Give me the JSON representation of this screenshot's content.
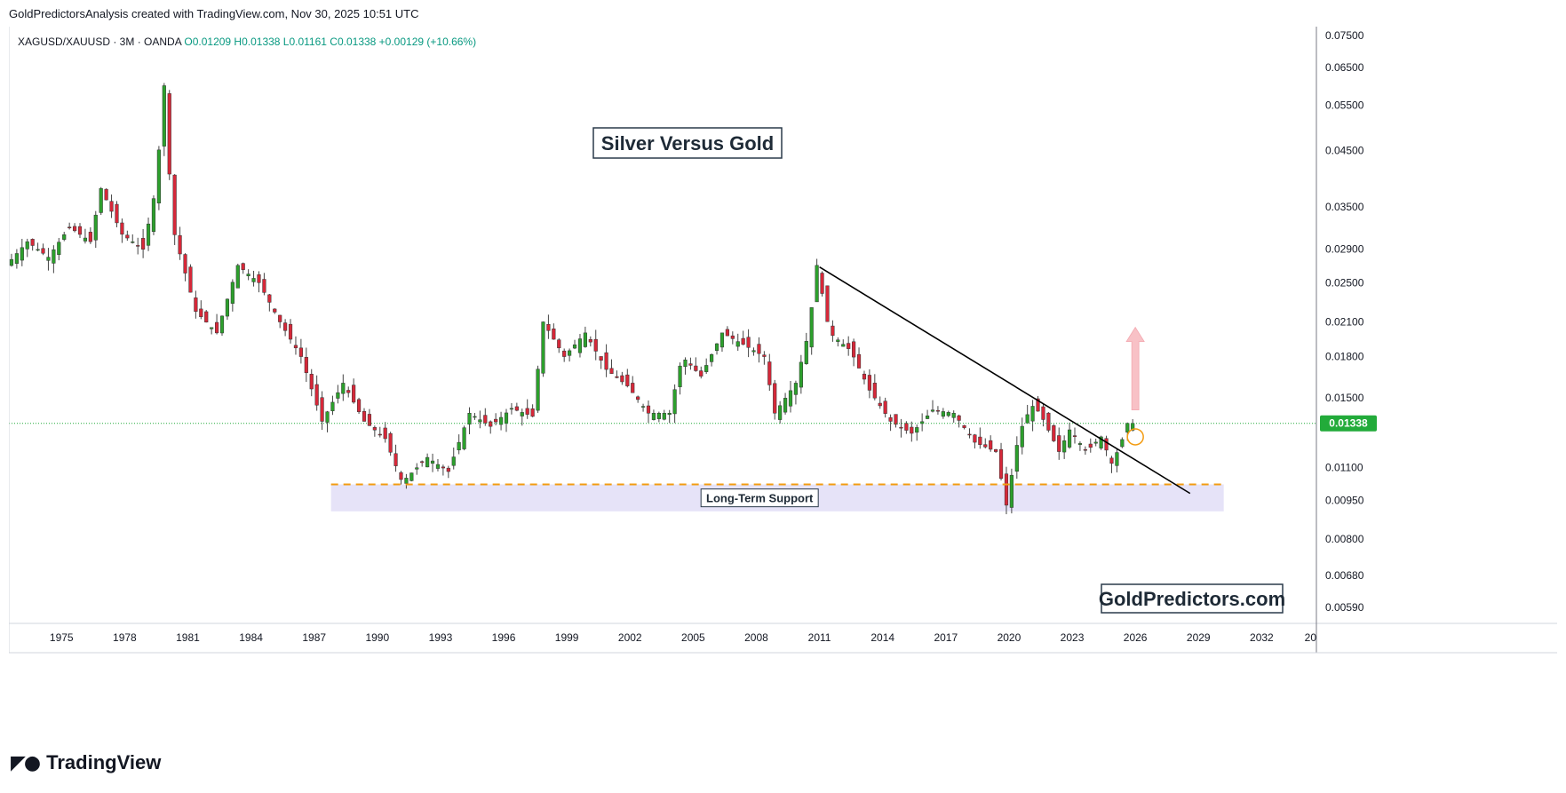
{
  "attribution": "GoldPredictorsAnalysis created with TradingView.com, Nov 30, 2025 10:51 UTC",
  "legend": {
    "symbol": "XAGUSD/XAUUSD · 3M · OANDA",
    "ohlc": "O0.01209 H0.01338 L0.01161 C0.01338 +0.00129 (+10.66%)"
  },
  "colors": {
    "up": "#2ca02c",
    "down": "#d62839",
    "trendline": "#000000",
    "support_line": "#f39c12",
    "support_zone": "#e6e3f8",
    "price_tag": "#22ab3a",
    "arrow": "#f7b7bd",
    "grid_axis": "#d1d4dc"
  },
  "chart_data": {
    "type": "candlestick",
    "title": "Silver Versus Gold",
    "scale": "log",
    "ylim": [
      0.0055,
      0.078
    ],
    "xlim": [
      1972.5,
      2034.6
    ],
    "y_ticks": [
      "0.07500",
      "0.06500",
      "0.05500",
      "0.04500",
      "0.03500",
      "0.02900",
      "0.02500",
      "0.02100",
      "0.01800",
      "0.01500",
      "0.01100",
      "0.00950",
      "0.00800",
      "0.00680",
      "0.00590"
    ],
    "x_ticks": [
      "1975",
      "1978",
      "1981",
      "1984",
      "1987",
      "1990",
      "1993",
      "1996",
      "1999",
      "2002",
      "2005",
      "2008",
      "2011",
      "2014",
      "2017",
      "2020",
      "2023",
      "2026",
      "2029",
      "2032",
      "20"
    ],
    "last_price": "0.01338",
    "anchors": [
      [
        1972.5,
        0.027
      ],
      [
        1973.5,
        0.03
      ],
      [
        1974.5,
        0.028
      ],
      [
        1975.5,
        0.032
      ],
      [
        1976.5,
        0.03
      ],
      [
        1977.0,
        0.038
      ],
      [
        1978.0,
        0.031
      ],
      [
        1979.0,
        0.029
      ],
      [
        1979.6,
        0.038
      ],
      [
        1980.0,
        0.06
      ],
      [
        1980.4,
        0.032
      ],
      [
        1981.5,
        0.022
      ],
      [
        1982.5,
        0.02
      ],
      [
        1983.5,
        0.027
      ],
      [
        1984.5,
        0.025
      ],
      [
        1985.5,
        0.021
      ],
      [
        1986.5,
        0.018
      ],
      [
        1987.5,
        0.0135
      ],
      [
        1988.5,
        0.016
      ],
      [
        1989.5,
        0.0135
      ],
      [
        1990.5,
        0.0125
      ],
      [
        1991.3,
        0.0103
      ],
      [
        1992.5,
        0.0115
      ],
      [
        1993.5,
        0.0108
      ],
      [
        1994.5,
        0.014
      ],
      [
        1995.5,
        0.0132
      ],
      [
        1996.5,
        0.0143
      ],
      [
        1997.5,
        0.0138
      ],
      [
        1998.0,
        0.021
      ],
      [
        1999.0,
        0.018
      ],
      [
        2000.0,
        0.02
      ],
      [
        2001.0,
        0.017
      ],
      [
        2002.0,
        0.0158
      ],
      [
        2003.0,
        0.014
      ],
      [
        2004.0,
        0.014
      ],
      [
        2004.6,
        0.018
      ],
      [
        2005.5,
        0.0165
      ],
      [
        2006.5,
        0.02
      ],
      [
        2007.5,
        0.019
      ],
      [
        2008.5,
        0.018
      ],
      [
        2009.0,
        0.014
      ],
      [
        2010.0,
        0.016
      ],
      [
        2010.6,
        0.02
      ],
      [
        2011.0,
        0.027
      ],
      [
        2011.6,
        0.02
      ],
      [
        2012.6,
        0.0185
      ],
      [
        2013.5,
        0.0155
      ],
      [
        2014.5,
        0.0135
      ],
      [
        2015.5,
        0.0128
      ],
      [
        2016.5,
        0.0142
      ],
      [
        2017.5,
        0.014
      ],
      [
        2018.5,
        0.0123
      ],
      [
        2019.5,
        0.0118
      ],
      [
        2020.0,
        0.0093
      ],
      [
        2020.6,
        0.0128
      ],
      [
        2021.2,
        0.0145
      ],
      [
        2021.6,
        0.014
      ],
      [
        2022.5,
        0.0118
      ],
      [
        2023.0,
        0.013
      ],
      [
        2023.8,
        0.0118
      ],
      [
        2024.5,
        0.0126
      ],
      [
        2025.0,
        0.0112
      ],
      [
        2025.4,
        0.0121
      ],
      [
        2025.75,
        0.01338
      ]
    ],
    "annotations": {
      "trendline": {
        "x1": 2011.0,
        "y1": 0.0268,
        "x2": 2028.6,
        "y2": 0.0098
      },
      "support_line": {
        "x1": 1987.8,
        "x2": 2030.2,
        "y": 0.0102
      },
      "support_zone": {
        "x1": 1987.8,
        "x2": 2030.2,
        "y_top": 0.0102,
        "y_bottom": 0.00905
      },
      "support_label": "Long-Term Support",
      "breakout_marker": {
        "x": 2026.0,
        "y": 0.0126
      },
      "arrow": {
        "x": 2026.0,
        "y_from": 0.0142,
        "y_to": 0.0205
      }
    },
    "watermark": "GoldPredictors.com"
  }
}
